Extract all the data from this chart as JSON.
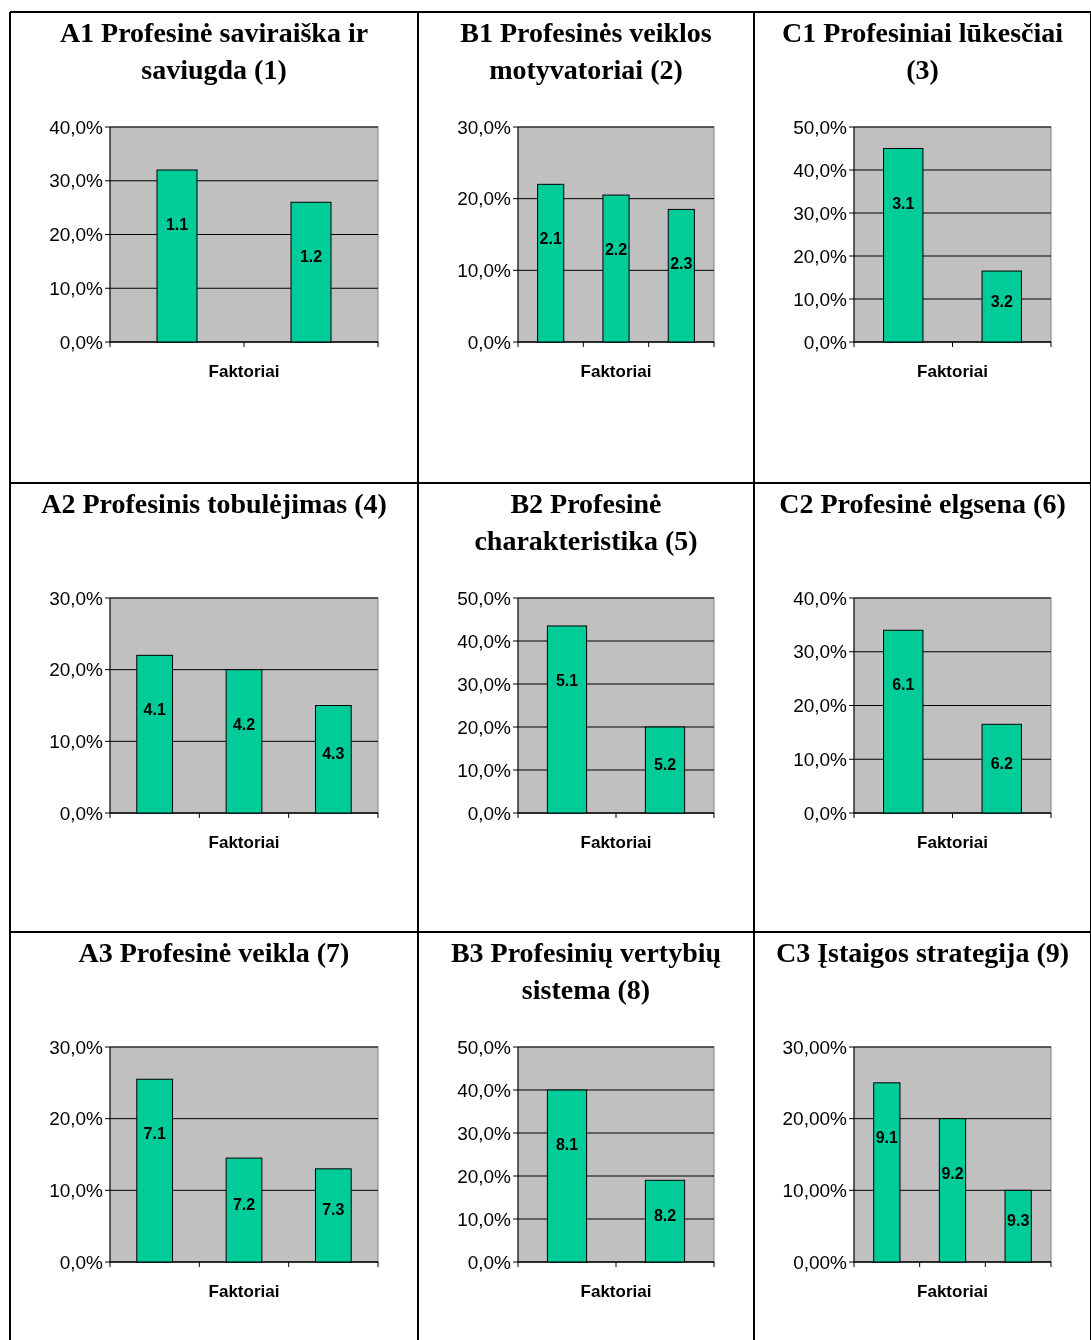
{
  "chart_data": [
    {
      "type": "bar",
      "title": "A1 Profesinė saviraiška ir saviugda (1)",
      "xlabel": "Faktoriai",
      "categories": [
        "1.1",
        "1.2"
      ],
      "values": [
        32,
        26
      ],
      "color": "#00cc99",
      "ylim": [
        0,
        40
      ],
      "yticks": [
        {
          "value": 0,
          "label": "0,0%"
        },
        {
          "value": 10,
          "label": "10,0%"
        },
        {
          "value": 20,
          "label": "20,0%"
        },
        {
          "value": 30,
          "label": "30,0%"
        },
        {
          "value": 40,
          "label": "40,0%"
        }
      ],
      "grid": "y"
    },
    {
      "type": "bar",
      "title": "B1 Profesinės veiklos motyvatoriai (2)",
      "xlabel": "Faktoriai",
      "categories": [
        "2.1",
        "2.2",
        "2.3"
      ],
      "values": [
        22,
        20.5,
        18.5
      ],
      "color": "#00cc99",
      "ylim": [
        0,
        30
      ],
      "yticks": [
        {
          "value": 0,
          "label": "0,0%"
        },
        {
          "value": 10,
          "label": "10,0%"
        },
        {
          "value": 20,
          "label": "20,0%"
        },
        {
          "value": 30,
          "label": "30,0%"
        }
      ],
      "grid": "y"
    },
    {
      "type": "bar",
      "title": "C1 Profesiniai lūkesčiai (3)",
      "xlabel": "Faktoriai",
      "categories": [
        "3.1",
        "3.2"
      ],
      "values": [
        45,
        16.5
      ],
      "color": "#00cc99",
      "ylim": [
        0,
        50
      ],
      "yticks": [
        {
          "value": 0,
          "label": "0,0%"
        },
        {
          "value": 10,
          "label": "10,0%"
        },
        {
          "value": 20,
          "label": "20,0%"
        },
        {
          "value": 30,
          "label": "30,0%"
        },
        {
          "value": 40,
          "label": "40,0%"
        },
        {
          "value": 50,
          "label": "50,0%"
        }
      ],
      "grid": "y"
    },
    {
      "type": "bar",
      "title": "A2 Profesinis tobulėjimas (4)",
      "xlabel": "Faktoriai",
      "categories": [
        "4.1",
        "4.2",
        "4.3"
      ],
      "values": [
        22,
        20,
        15
      ],
      "color": "#00cc99",
      "ylim": [
        0,
        30
      ],
      "yticks": [
        {
          "value": 0,
          "label": "0,0%"
        },
        {
          "value": 10,
          "label": "10,0%"
        },
        {
          "value": 20,
          "label": "20,0%"
        },
        {
          "value": 30,
          "label": "30,0%"
        }
      ],
      "grid": "y"
    },
    {
      "type": "bar",
      "title": "B2 Profesinė charakteristika (5)",
      "xlabel": "Faktoriai",
      "categories": [
        "5.1",
        "5.2"
      ],
      "values": [
        43.5,
        20
      ],
      "color": "#00cc99",
      "ylim": [
        0,
        50
      ],
      "yticks": [
        {
          "value": 0,
          "label": "0,0%"
        },
        {
          "value": 10,
          "label": "10,0%"
        },
        {
          "value": 20,
          "label": "20,0%"
        },
        {
          "value": 30,
          "label": "30,0%"
        },
        {
          "value": 40,
          "label": "40,0%"
        },
        {
          "value": 50,
          "label": "50,0%"
        }
      ],
      "grid": "y"
    },
    {
      "type": "bar",
      "title": "C2 Profesinė elgsena (6)",
      "xlabel": "Faktoriai",
      "categories": [
        "6.1",
        "6.2"
      ],
      "values": [
        34,
        16.5
      ],
      "color": "#00cc99",
      "ylim": [
        0,
        40
      ],
      "yticks": [
        {
          "value": 0,
          "label": "0,0%"
        },
        {
          "value": 10,
          "label": "10,0%"
        },
        {
          "value": 20,
          "label": "20,0%"
        },
        {
          "value": 30,
          "label": "30,0%"
        },
        {
          "value": 40,
          "label": "40,0%"
        }
      ],
      "grid": "y"
    },
    {
      "type": "bar",
      "title": "A3 Profesinė veikla (7)",
      "xlabel": "Faktoriai",
      "categories": [
        "7.1",
        "7.2",
        "7.3"
      ],
      "values": [
        25.5,
        14.5,
        13
      ],
      "color": "#00cc99",
      "ylim": [
        0,
        30
      ],
      "yticks": [
        {
          "value": 0,
          "label": "0,0%"
        },
        {
          "value": 10,
          "label": "10,0%"
        },
        {
          "value": 20,
          "label": "20,0%"
        },
        {
          "value": 30,
          "label": "30,0%"
        }
      ],
      "grid": "y"
    },
    {
      "type": "bar",
      "title": "B3 Profesinių vertybių sistema (8)",
      "xlabel": "Faktoriai",
      "categories": [
        "8.1",
        "8.2"
      ],
      "values": [
        40,
        19
      ],
      "color": "#00cc99",
      "ylim": [
        0,
        50
      ],
      "yticks": [
        {
          "value": 0,
          "label": "0,0%"
        },
        {
          "value": 10,
          "label": "10,0%"
        },
        {
          "value": 20,
          "label": "20,0%"
        },
        {
          "value": 30,
          "label": "30,0%"
        },
        {
          "value": 40,
          "label": "40,0%"
        },
        {
          "value": 50,
          "label": "50,0%"
        }
      ],
      "grid": "y"
    },
    {
      "type": "bar",
      "title": "C3 Įstaigos strategija (9)",
      "xlabel": "Faktoriai",
      "categories": [
        "9.1",
        "9.2",
        "9.3"
      ],
      "values": [
        25,
        20,
        10
      ],
      "color": "#00cc99",
      "ylim": [
        0,
        30
      ],
      "yticks": [
        {
          "value": 0,
          "label": "0,00%"
        },
        {
          "value": 10,
          "label": "10,00%"
        },
        {
          "value": 20,
          "label": "20,00%"
        },
        {
          "value": 30,
          "label": "30,00%"
        }
      ],
      "grid": "y"
    }
  ]
}
